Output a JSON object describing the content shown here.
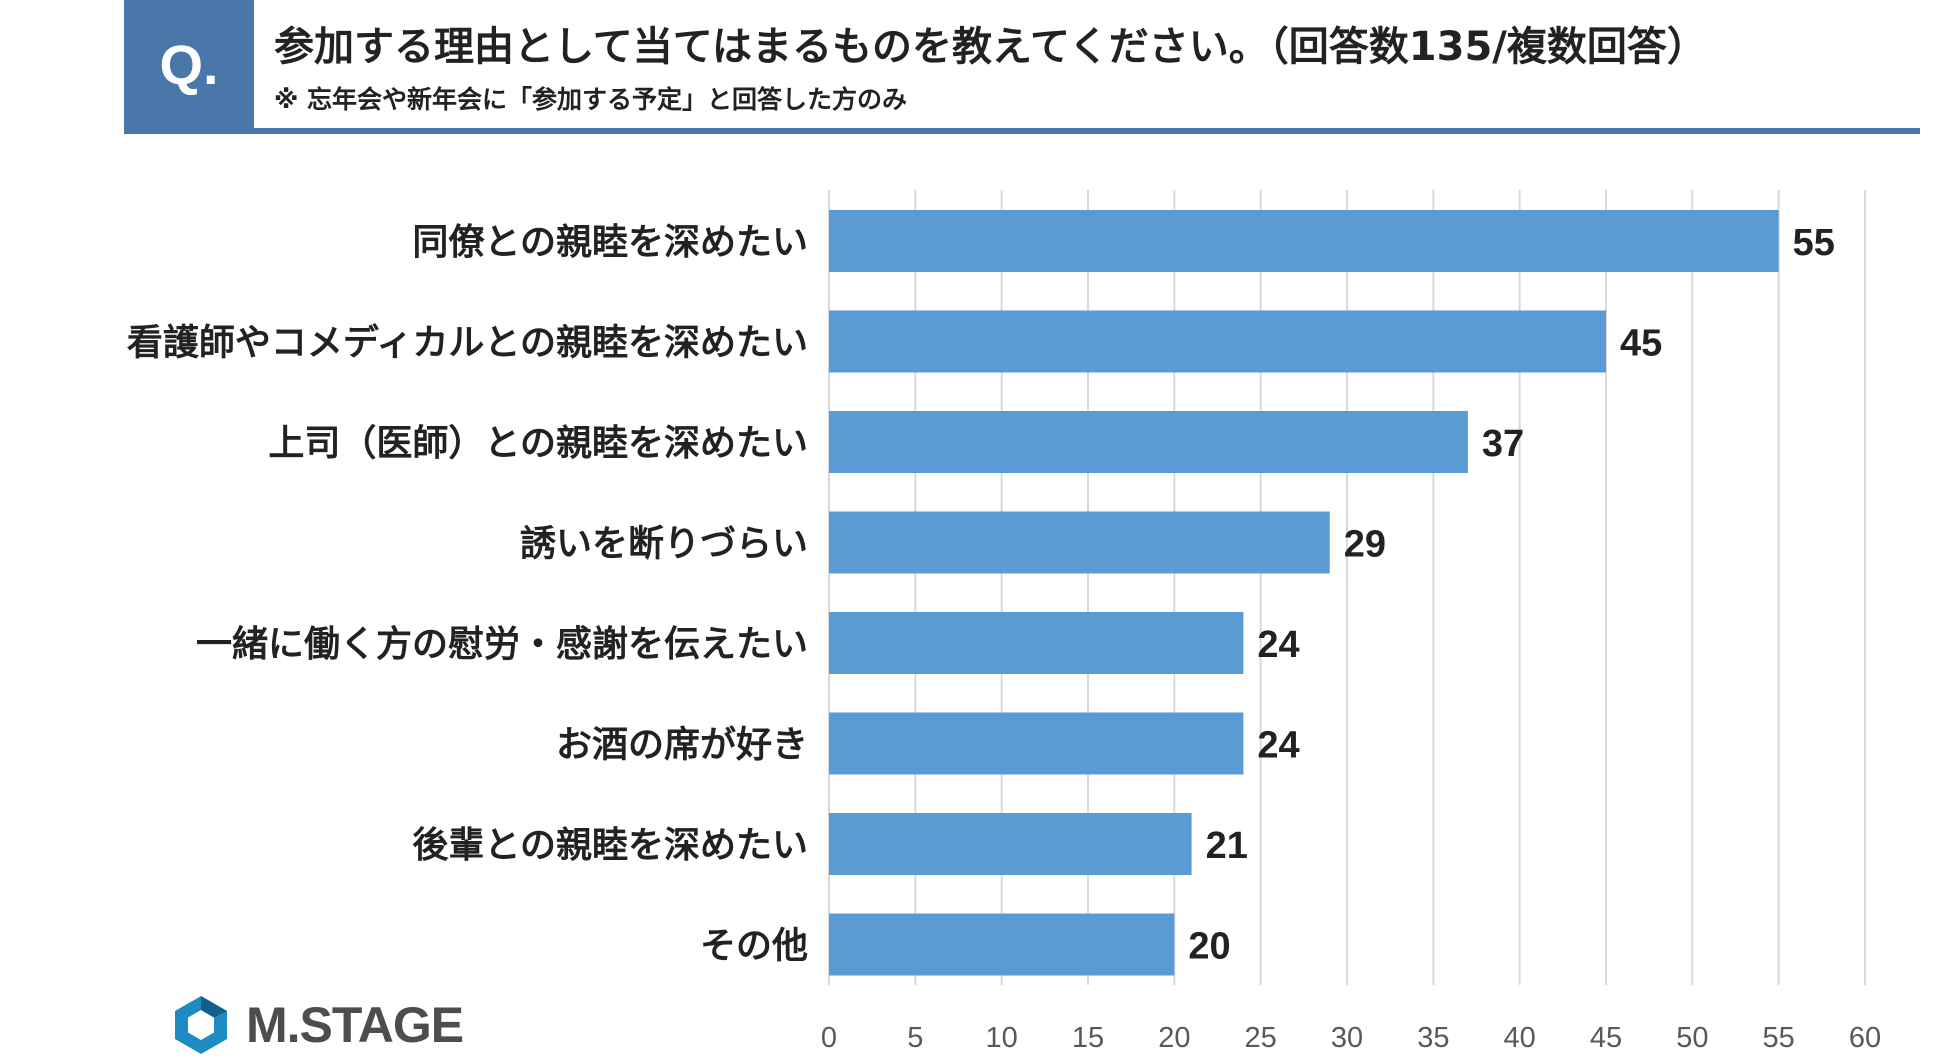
{
  "header": {
    "badge": "Q.",
    "title": "参加する理由として当てはまるものを教えてください。（回答数135/複数回答）",
    "subtitle": "※ 忘年会や新年会に「参加する予定」と回答した方のみ"
  },
  "colors": {
    "accent": "#4a77a9",
    "bar": "#5b9bd5",
    "grid": "#d9d9d9"
  },
  "logo": {
    "icon": "hexagon-logo-icon",
    "text": "M.STAGE"
  },
  "chart_data": {
    "type": "bar",
    "orientation": "horizontal",
    "categories": [
      "同僚との親睦を深めたい",
      "看護師やコメディカルとの親睦を深めたい",
      "上司（医師）との親睦を深めたい",
      "誘いを断りづらい",
      "一緒に働く方の慰労・感謝を伝えたい",
      "お酒の席が好き",
      "後輩との親睦を深めたい",
      "その他"
    ],
    "values": [
      55,
      45,
      37,
      29,
      24,
      24,
      21,
      20
    ],
    "xlim": [
      0,
      60
    ],
    "xticks": [
      0,
      5,
      10,
      15,
      20,
      25,
      30,
      35,
      40,
      45,
      50,
      55,
      60
    ],
    "grid": true,
    "data_labels": true,
    "legend": "none"
  }
}
